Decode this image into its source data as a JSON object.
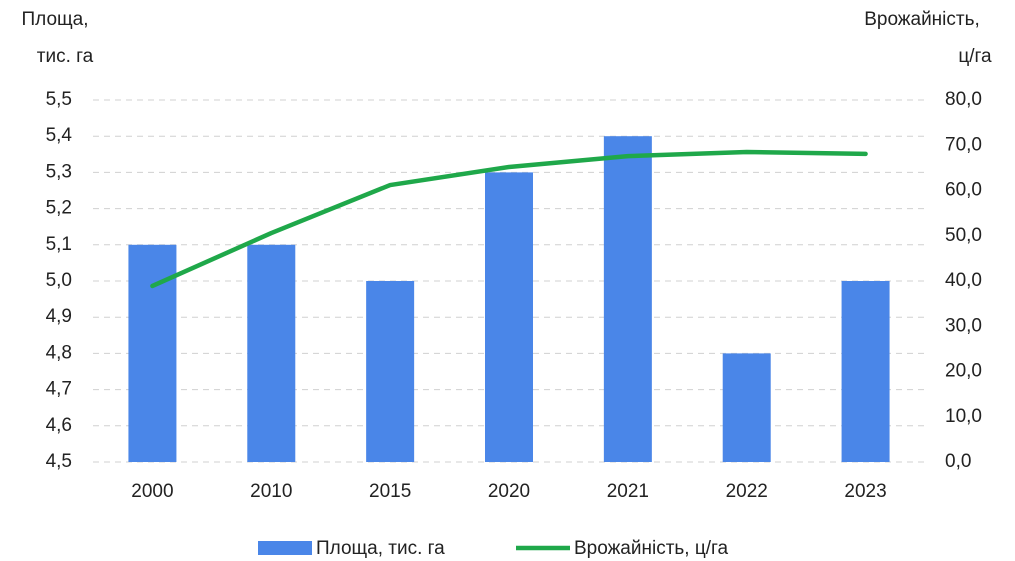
{
  "chart_data": {
    "type": "bar-line",
    "y_label": [
      "Площа,",
      "тис. га"
    ],
    "y2_label": [
      "Врожайність,",
      "ц/га"
    ],
    "categories": [
      "2000",
      "2010",
      "2015",
      "2020",
      "2021",
      "2022",
      "2023"
    ],
    "series": [
      {
        "name": "Площа, тис. га",
        "color": "#4a86e8",
        "type": "bar",
        "values": [
          5.1,
          5.1,
          5.0,
          5.3,
          5.4,
          4.8,
          5.0
        ]
      },
      {
        "name": "Врожайність, ц/га",
        "color": "#1fa84a",
        "type": "line",
        "axis": "y2",
        "values": [
          38.9,
          50.6,
          61.2,
          65.2,
          67.6,
          68.5,
          68.1
        ]
      }
    ],
    "ylim": [
      4.5,
      5.5
    ],
    "yticks": [
      {
        "value": 4.5,
        "label": "4,5"
      },
      {
        "value": 4.6,
        "label": "4,6"
      },
      {
        "value": 4.7,
        "label": "4,7"
      },
      {
        "value": 4.8,
        "label": "4,8"
      },
      {
        "value": 4.9,
        "label": "4,9"
      },
      {
        "value": 5.0,
        "label": "5,0"
      },
      {
        "value": 5.1,
        "label": "5,1"
      },
      {
        "value": 5.2,
        "label": "5,2"
      },
      {
        "value": 5.3,
        "label": "5,3"
      },
      {
        "value": 5.4,
        "label": "5,4"
      },
      {
        "value": 5.5,
        "label": "5,5"
      }
    ],
    "y2lim": [
      0,
      80
    ],
    "y2ticks": [
      {
        "value": 0,
        "label": "0,0"
      },
      {
        "value": 10,
        "label": "10,0"
      },
      {
        "value": 20,
        "label": "20,0"
      },
      {
        "value": 30,
        "label": "30,0"
      },
      {
        "value": 40,
        "label": "40,0"
      },
      {
        "value": 50,
        "label": "50,0"
      },
      {
        "value": 60,
        "label": "60,0"
      },
      {
        "value": 70,
        "label": "70,0"
      },
      {
        "value": 80,
        "label": "80,0"
      }
    ],
    "grid": true,
    "legend": "bottom"
  }
}
